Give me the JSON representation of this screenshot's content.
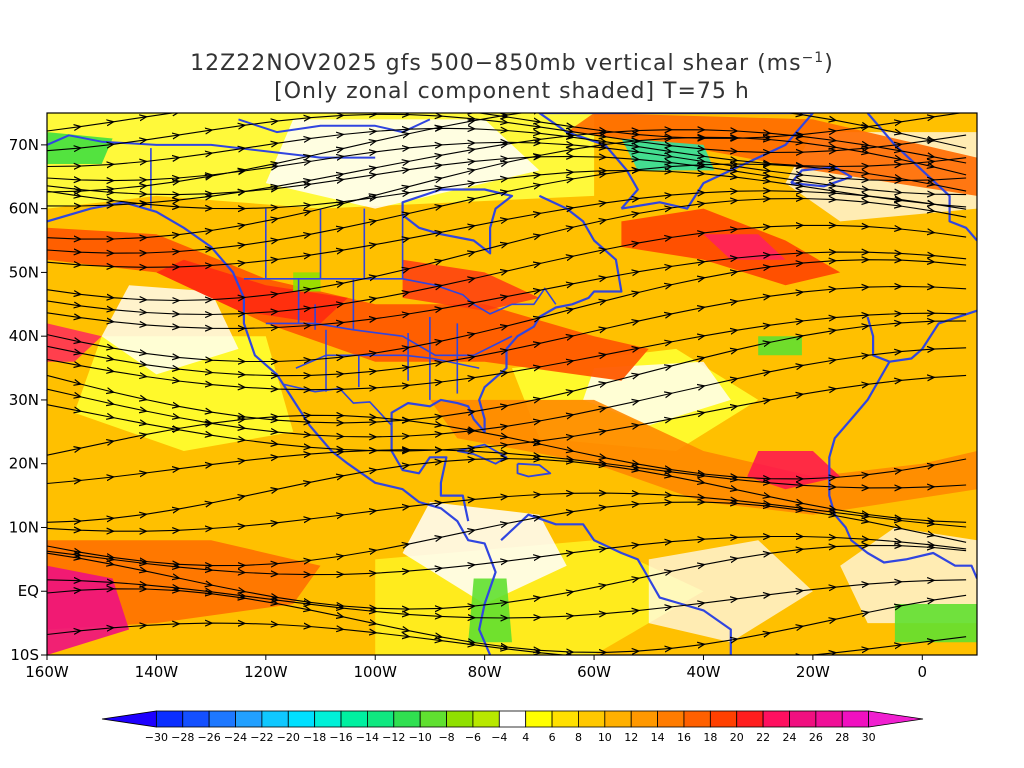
{
  "title": {
    "line1": "12Z22NOV2025 gfs 500−850mb vertical shear (ms",
    "line1_sup": "−1",
    "line1_end": ")",
    "line2": "[Only zonal component shaded] T=75 h"
  },
  "y_axis": {
    "labels": [
      "70N",
      "60N",
      "50N",
      "40N",
      "30N",
      "20N",
      "10N",
      "EQ",
      "10S"
    ],
    "values": [
      70,
      60,
      50,
      40,
      30,
      20,
      10,
      0,
      -10
    ]
  },
  "x_axis": {
    "labels": [
      "160W",
      "140W",
      "120W",
      "100W",
      "80W",
      "60W",
      "40W",
      "20W",
      "0"
    ],
    "values": [
      -160,
      -140,
      -120,
      -100,
      -80,
      -60,
      -40,
      -20,
      0
    ]
  },
  "colorbar": {
    "labels": [
      "−30",
      "−28",
      "−26",
      "−24",
      "−22",
      "−20",
      "−18",
      "−16",
      "−14",
      "−12",
      "−10",
      "−8",
      "−6",
      "−4",
      "4",
      "6",
      "8",
      "10",
      "12",
      "14",
      "16",
      "18",
      "20",
      "22",
      "24",
      "26",
      "28",
      "30"
    ],
    "colors": [
      "#1e00ff",
      "#0a2eff",
      "#1450ff",
      "#1e78ff",
      "#22a0ff",
      "#10c8ff",
      "#00e0ff",
      "#00f0d8",
      "#00f0a0",
      "#10e880",
      "#30e050",
      "#60e030",
      "#90e000",
      "#b8e800",
      "#ffffff",
      "#ffff00",
      "#ffe000",
      "#ffc800",
      "#ffb000",
      "#ff9800",
      "#ff7c00",
      "#ff6000",
      "#ff4000",
      "#ff1e1e",
      "#ff1060",
      "#f01080",
      "#f01098",
      "#f010c0",
      "#f020d0"
    ]
  },
  "colors": {
    "coastline": "#3045e0",
    "streamline": "#000000",
    "frame": "#000000",
    "title_text": "#333333"
  },
  "map_extent": {
    "lon": [
      -160,
      10
    ],
    "lat": [
      -10,
      75
    ]
  }
}
